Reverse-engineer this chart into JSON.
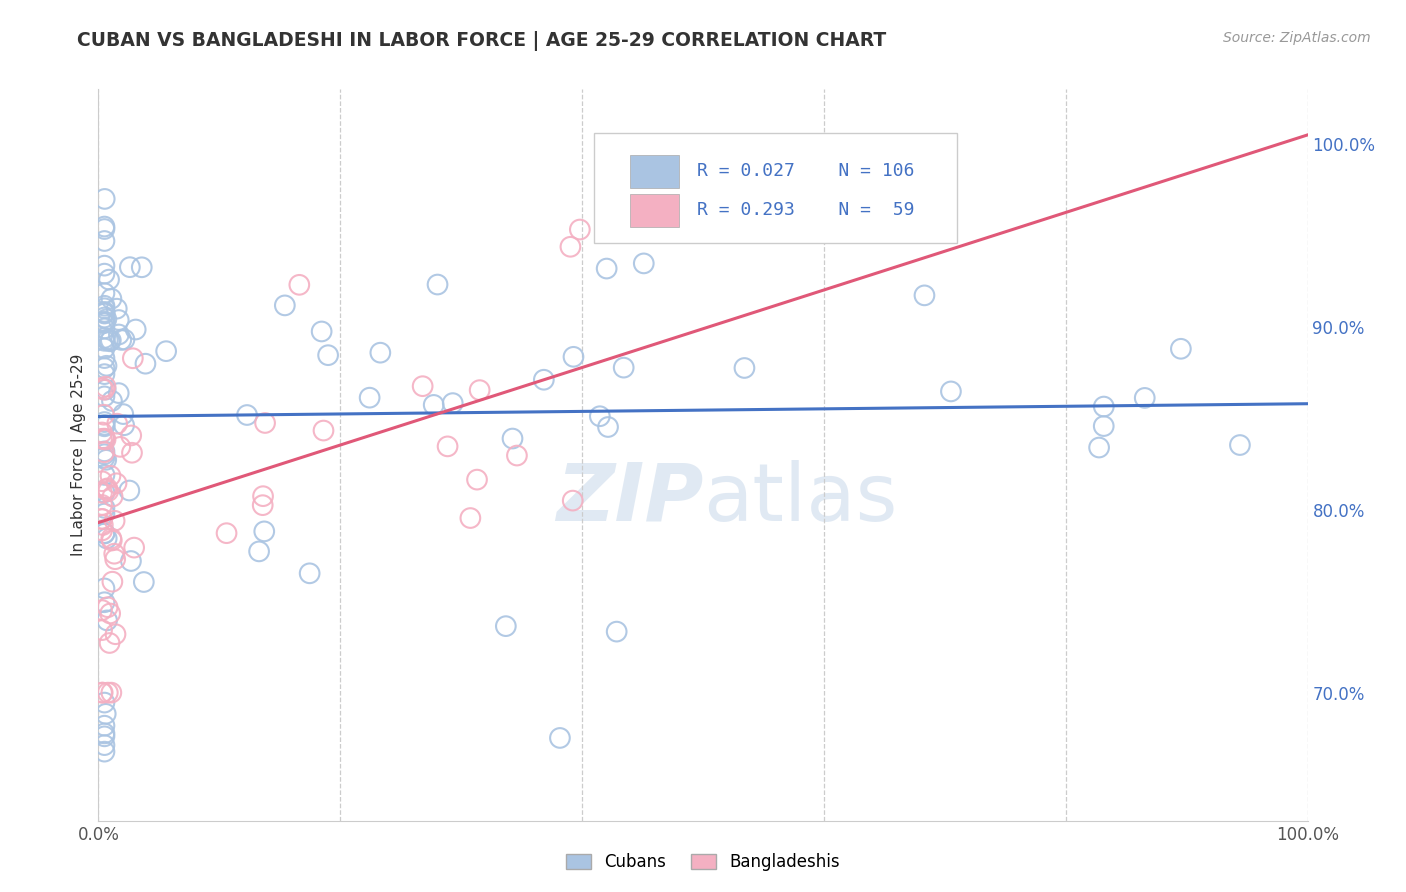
{
  "title": "CUBAN VS BANGLADESHI IN LABOR FORCE | AGE 25-29 CORRELATION CHART",
  "source_text": "Source: ZipAtlas.com",
  "ylabel": "In Labor Force | Age 25-29",
  "cuban_R": 0.027,
  "cuban_N": 106,
  "bangladeshi_R": 0.293,
  "bangladeshi_N": 59,
  "cuban_color": "#aac4e2",
  "cuban_line_color": "#4472c4",
  "bangladeshi_color": "#f4b0c2",
  "bangladeshi_line_color": "#e05878",
  "legend_text_color": "#4472c4",
  "background_color": "#ffffff",
  "watermark_color": "#c8d8ea",
  "xlim": [
    0.0,
    1.0
  ],
  "ylim": [
    0.63,
    1.03
  ],
  "y_ticks": [
    0.7,
    0.8,
    0.9,
    1.0
  ],
  "cuban_line_x0": 0.0,
  "cuban_line_x1": 1.0,
  "cuban_line_y0": 0.851,
  "cuban_line_y1": 0.858,
  "bangladeshi_line_x0": 0.0,
  "bangladeshi_line_x1": 1.0,
  "bangladeshi_line_y0": 0.793,
  "bangladeshi_line_y1": 1.005
}
